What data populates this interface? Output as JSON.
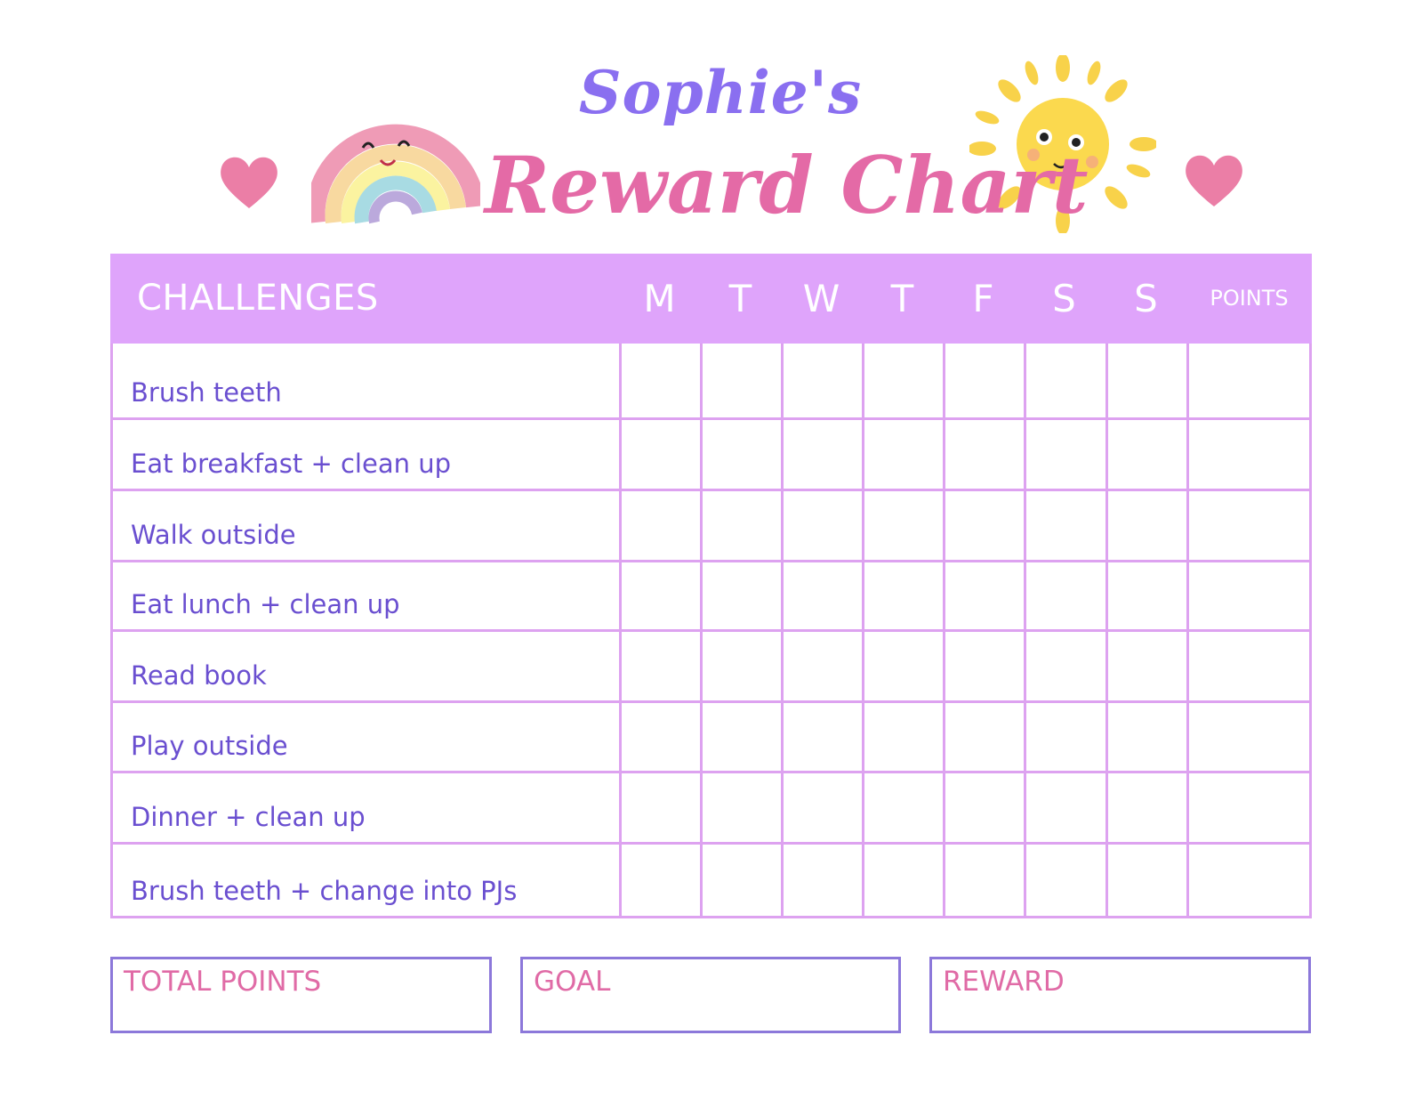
{
  "title": {
    "line1": "Sophie's",
    "line2": "Reward Chart"
  },
  "decorations": [
    "heart-icon",
    "rainbow-icon",
    "sun-icon",
    "heart-icon"
  ],
  "colors": {
    "header_bg": "#dfa4fb",
    "grid": "#dda2f0",
    "task_text": "#6a4fd0",
    "title_purple": "#8a6ff0",
    "title_pink": "#e46aa6",
    "box_border": "#8c78da"
  },
  "table": {
    "challenges_header": "CHALLENGES",
    "days": [
      "M",
      "T",
      "W",
      "T",
      "F",
      "S",
      "S"
    ],
    "points_header": "POINTS",
    "tasks": [
      "Brush teeth",
      "Eat breakfast + clean up",
      "Walk outside",
      "Eat lunch + clean up",
      "Read book",
      "Play outside",
      "Dinner + clean up",
      "Brush teeth + change into PJs"
    ]
  },
  "footer": {
    "total_points": "TOTAL POINTS",
    "goal": "GOAL",
    "reward": "REWARD"
  }
}
